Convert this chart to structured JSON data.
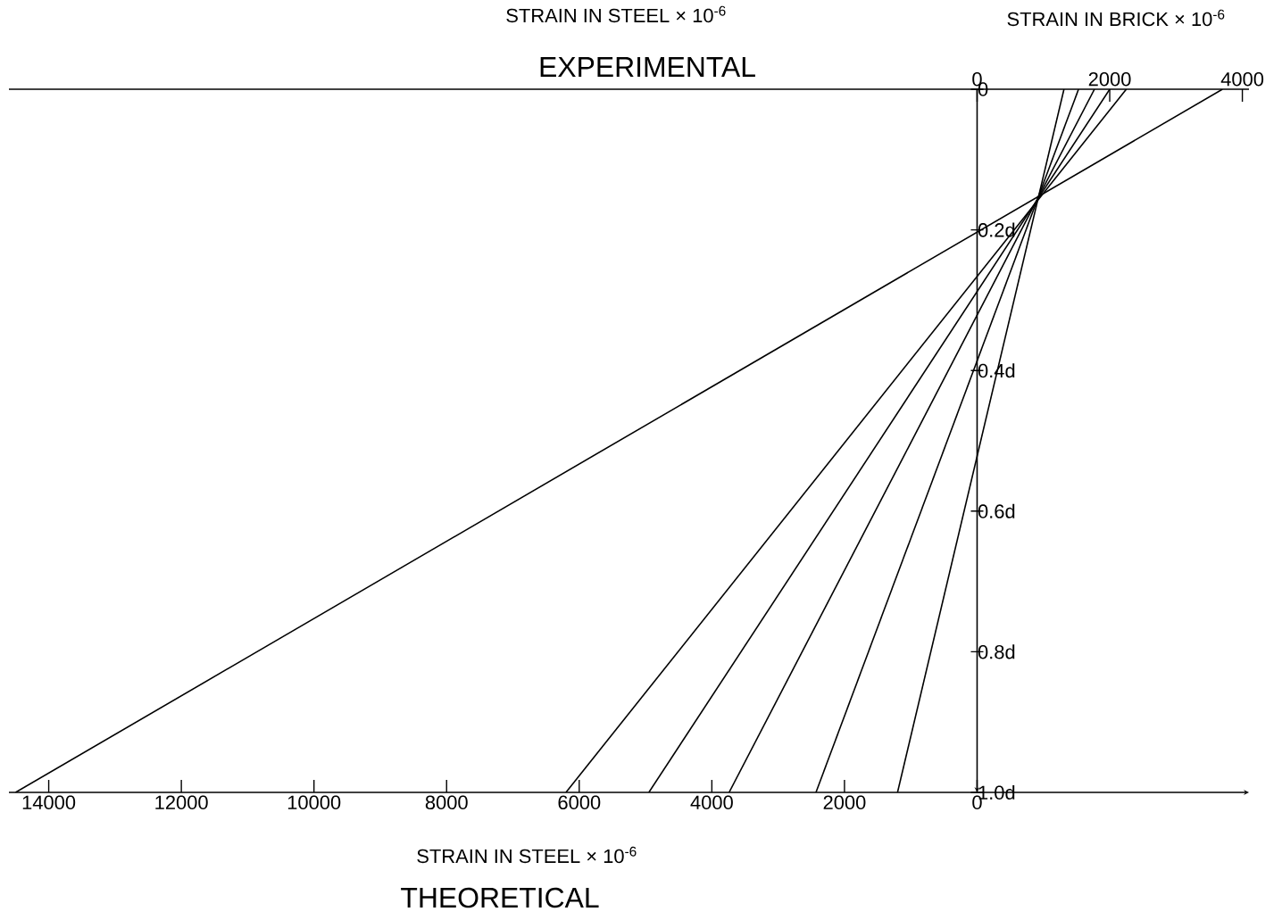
{
  "chart_data": {
    "type": "line",
    "title": "EXPERIMENTAL",
    "xlabel": "STRAIN IN STEEL × 10$^{-6}$",
    "x2label": "STRAIN IN BRICK × 10$^{-6}$",
    "annotations": [
      "STRAIN IN STEEL × 10$^{-6}$",
      "THEORETICAL"
    ],
    "xlim": [
      -14600,
      4100
    ],
    "xticks": [
      {
        "value": -14000,
        "label": "14000"
      },
      {
        "value": -12000,
        "label": "12000"
      },
      {
        "value": -10000,
        "label": "10000"
      },
      {
        "value": -8000,
        "label": "8000"
      },
      {
        "value": -6000,
        "label": "6000"
      },
      {
        "value": -4000,
        "label": "4000"
      },
      {
        "value": -2000,
        "label": "2000"
      },
      {
        "value": 0,
        "label": "0"
      }
    ],
    "x2lim": [
      -14600,
      4100
    ],
    "x2ticks": [
      0,
      2000,
      4000
    ],
    "ylim": [
      1.0,
      0
    ],
    "yticks": [
      {
        "value": 0,
        "label": "0"
      },
      {
        "value": 0.2,
        "label": "0.2d"
      },
      {
        "value": 0.4,
        "label": "0.4d"
      },
      {
        "value": 0.6,
        "label": "0.6d"
      },
      {
        "value": 0.8,
        "label": "0.8d"
      },
      {
        "value": 1.0,
        "label": "1.0d"
      }
    ],
    "grid": false,
    "marker": "none",
    "line_style": "solid",
    "series": [
      {
        "color": "#000000",
        "x": [
          3700,
          -14500
        ],
        "values": [
          0,
          1
        ]
      },
      {
        "color": "#000000",
        "x": [
          2250,
          -6200
        ],
        "values": [
          0,
          1
        ]
      },
      {
        "color": "#000000",
        "x": [
          2000,
          -4950
        ],
        "values": [
          0,
          1
        ]
      },
      {
        "color": "#000000",
        "x": [
          1770,
          -3740
        ],
        "values": [
          0,
          1
        ]
      },
      {
        "color": "#000000",
        "x": [
          1530,
          -2430
        ],
        "values": [
          0,
          1
        ]
      },
      {
        "color": "#000000",
        "x": [
          1310,
          -1200
        ],
        "values": [
          0,
          1
        ]
      }
    ]
  }
}
